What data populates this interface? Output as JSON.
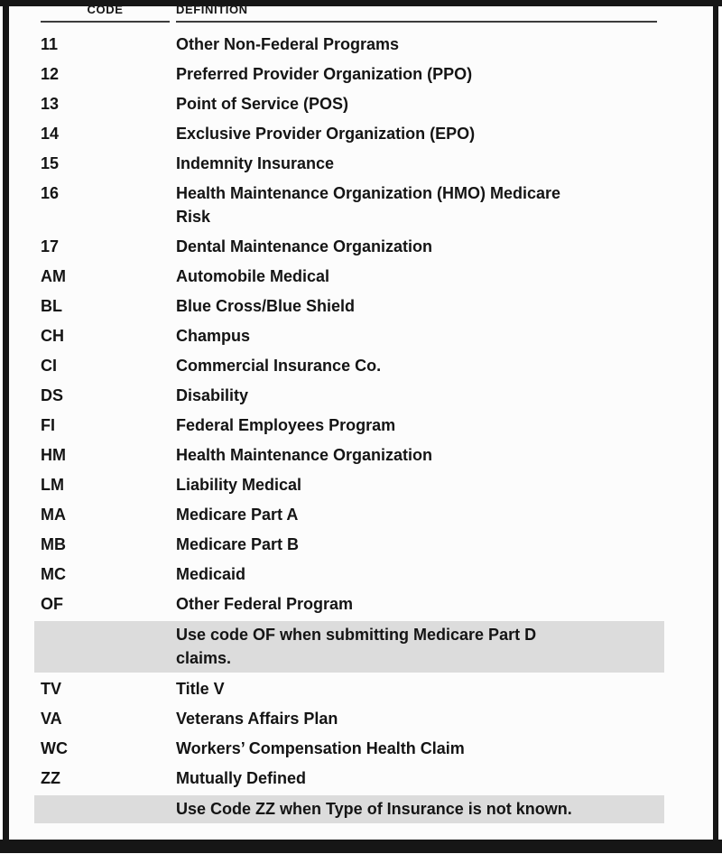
{
  "page": {
    "kind": "insurance-type-code-table",
    "colors": {
      "frame": "#161616",
      "text": "#141414",
      "note_background": "#dcdcdc",
      "paper": "#fcfcfc"
    }
  },
  "table": {
    "headers": {
      "code": "CODE",
      "definition": "DEFINITION"
    },
    "rows": [
      {
        "code": "11",
        "definition": "Other Non-Federal Programs",
        "note": false
      },
      {
        "code": "12",
        "definition": "Preferred Provider Organization (PPO)",
        "note": false
      },
      {
        "code": "13",
        "definition": "Point of Service (POS)",
        "note": false
      },
      {
        "code": "14",
        "definition": "Exclusive Provider Organization (EPO)",
        "note": false
      },
      {
        "code": "15",
        "definition": "Indemnity Insurance",
        "note": false
      },
      {
        "code": "16",
        "definition": "Health Maintenance Organization (HMO) Medicare\nRisk",
        "note": false
      },
      {
        "code": "17",
        "definition": "Dental Maintenance Organization",
        "note": false
      },
      {
        "code": "AM",
        "definition": "Automobile Medical",
        "note": false
      },
      {
        "code": "BL",
        "definition": "Blue Cross/Blue Shield",
        "note": false
      },
      {
        "code": "CH",
        "definition": "Champus",
        "note": false
      },
      {
        "code": "CI",
        "definition": "Commercial Insurance Co.",
        "note": false
      },
      {
        "code": "DS",
        "definition": "Disability",
        "note": false
      },
      {
        "code": "FI",
        "definition": "Federal Employees Program",
        "note": false
      },
      {
        "code": "HM",
        "definition": "Health Maintenance Organization",
        "note": false
      },
      {
        "code": "LM",
        "definition": "Liability Medical",
        "note": false
      },
      {
        "code": "MA",
        "definition": "Medicare Part A",
        "note": false
      },
      {
        "code": "MB",
        "definition": "Medicare Part B",
        "note": false
      },
      {
        "code": "MC",
        "definition": "Medicaid",
        "note": false
      },
      {
        "code": "OF",
        "definition": "Other Federal Program",
        "note": false
      },
      {
        "code": "",
        "definition": "Use code OF when submitting Medicare Part D\nclaims.",
        "note": true
      },
      {
        "code": "TV",
        "definition": "Title V",
        "note": false
      },
      {
        "code": "VA",
        "definition": "Veterans Affairs Plan",
        "note": false
      },
      {
        "code": "WC",
        "definition": "Workers’ Compensation Health Claim",
        "note": false
      },
      {
        "code": "ZZ",
        "definition": "Mutually Defined",
        "note": false
      },
      {
        "code": "",
        "definition": "Use Code ZZ when Type of Insurance is not known.",
        "note": true
      }
    ]
  }
}
